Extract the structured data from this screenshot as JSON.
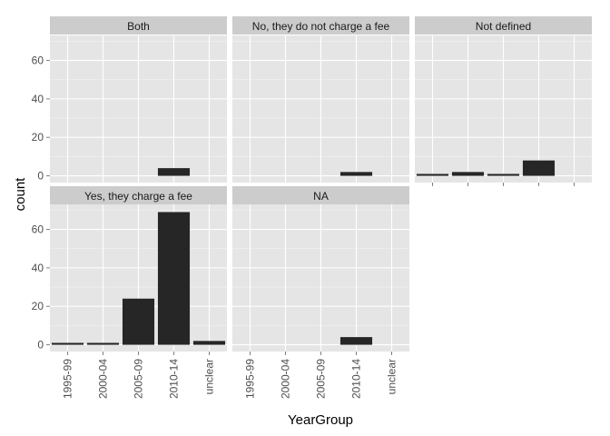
{
  "chart_data": {
    "type": "bar",
    "facet_layout": "wrap",
    "xlabel": "YearGroup",
    "ylabel": "count",
    "categories": [
      "1995-99",
      "2000-04",
      "2005-09",
      "2010-14",
      "unclear"
    ],
    "ylim": [
      -3.5,
      73
    ],
    "yticks": [
      0,
      20,
      40,
      60
    ],
    "grid": true,
    "colors": {
      "panel_bg": "#e5e5e5",
      "strip_bg": "#cccccc",
      "grid_major": "#ffffff",
      "grid_minor": "#f2f2f2",
      "bar": "#262626"
    },
    "panels": [
      {
        "label": "Both",
        "values": [
          0,
          0,
          0,
          4,
          0
        ]
      },
      {
        "label": "No, they do not charge a fee",
        "values": [
          0,
          0,
          0,
          2,
          0
        ]
      },
      {
        "label": "Not defined",
        "values": [
          1,
          2,
          1,
          8,
          0
        ]
      },
      {
        "label": "Yes, they charge a fee",
        "values": [
          1,
          1,
          24,
          69,
          2
        ]
      },
      {
        "label": "NA",
        "values": [
          0,
          0,
          0,
          4,
          0
        ]
      }
    ]
  }
}
